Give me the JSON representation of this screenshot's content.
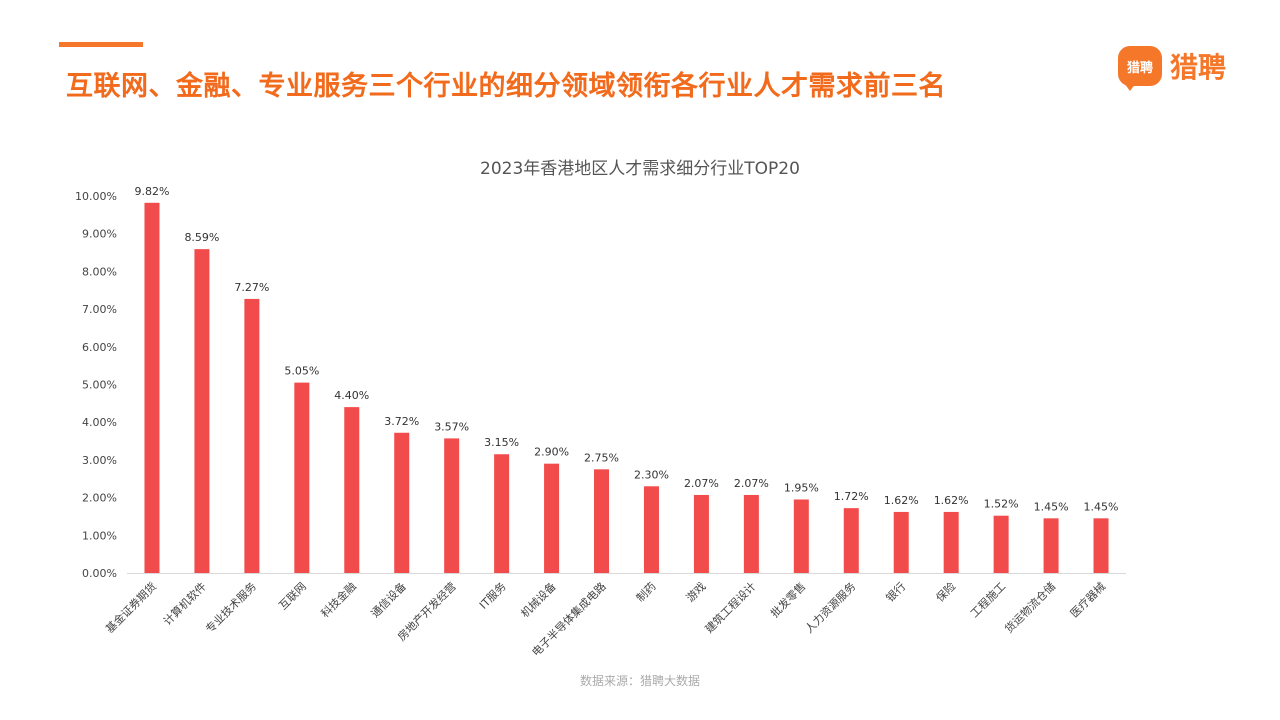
{
  "header": {
    "title": "互联网、金融、专业服务三个行业的细分领域领衔各行业人才需求前三名",
    "logo_badge": "猎聘",
    "logo_text": "猎聘"
  },
  "footer": {
    "source": "数据来源：猎聘大数据"
  },
  "colors": {
    "accent": "#f5772a",
    "bar": "#f24b4b"
  },
  "chart_data": {
    "type": "bar",
    "title": "2023年香港地区人才需求细分行业TOP20",
    "xlabel": "",
    "ylabel": "",
    "ylim": [
      0,
      10
    ],
    "yticks": [
      "0.00%",
      "1.00%",
      "2.00%",
      "3.00%",
      "4.00%",
      "5.00%",
      "6.00%",
      "7.00%",
      "8.00%",
      "9.00%",
      "10.00%"
    ],
    "categories": [
      "基金证券期货",
      "计算机软件",
      "专业技术服务",
      "互联网",
      "科技金融",
      "通信设备",
      "房地产开发经营",
      "IT服务",
      "机械设备",
      "电子半导体集成电路",
      "制药",
      "游戏",
      "建筑工程设计",
      "批发零售",
      "人力资源服务",
      "银行",
      "保险",
      "工程施工",
      "货运物流仓储",
      "医疗器械"
    ],
    "values": [
      9.82,
      8.59,
      7.27,
      5.05,
      4.4,
      3.72,
      3.57,
      3.15,
      2.9,
      2.75,
      2.3,
      2.07,
      2.07,
      1.95,
      1.72,
      1.62,
      1.62,
      1.52,
      1.45,
      1.45
    ],
    "value_labels": [
      "9.82%",
      "8.59%",
      "7.27%",
      "5.05%",
      "4.40%",
      "3.72%",
      "3.57%",
      "3.15%",
      "2.90%",
      "2.75%",
      "2.30%",
      "2.07%",
      "2.07%",
      "1.95%",
      "1.72%",
      "1.62%",
      "1.62%",
      "1.52%",
      "1.45%",
      "1.45%"
    ],
    "grid": false,
    "legend": "none"
  }
}
